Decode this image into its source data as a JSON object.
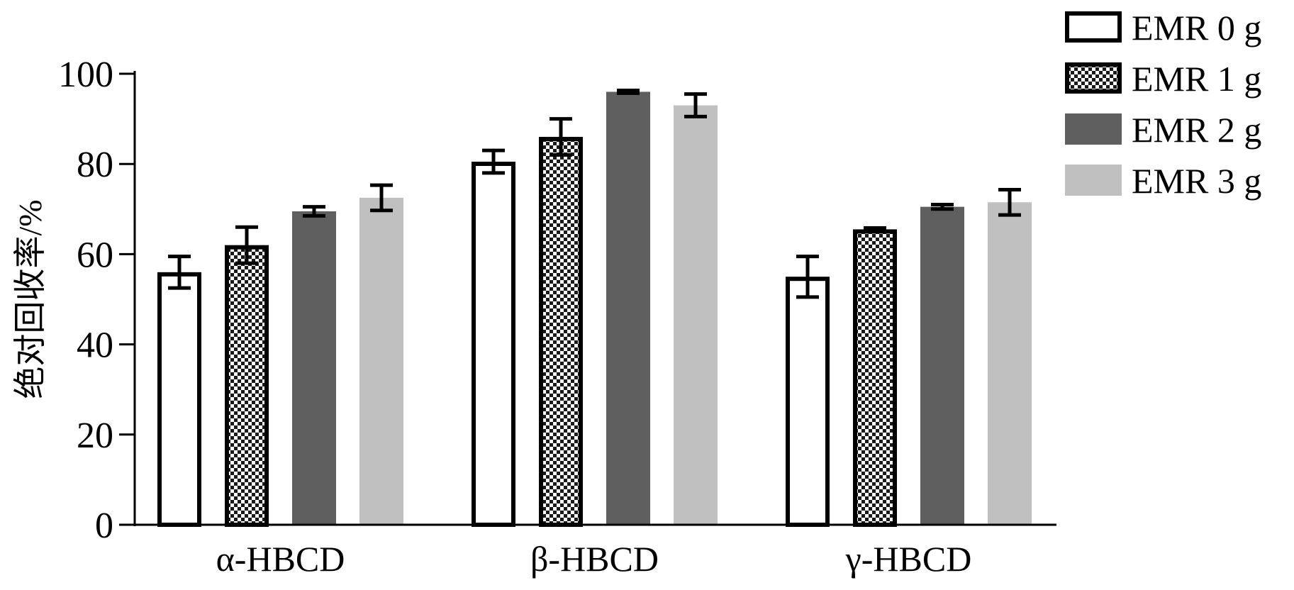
{
  "chart_data": {
    "type": "bar",
    "ylabel": "绝对回收率/%",
    "ylim": [
      0,
      100
    ],
    "yticks": [
      0,
      20,
      40,
      60,
      80,
      100
    ],
    "categories": [
      "α-HBCD",
      "β-HBCD",
      "γ-HBCD"
    ],
    "legend_position": "top-right",
    "grid": false,
    "series": [
      {
        "name": "EMR 0 g",
        "pattern": "hollow",
        "color": "#ffffff",
        "values": [
          56.0,
          80.5,
          55.0
        ],
        "errors": [
          3.5,
          2.5,
          4.5
        ]
      },
      {
        "name": "EMR 1 g",
        "pattern": "checker",
        "color": "#000000",
        "values": [
          62.0,
          86.0,
          65.5
        ],
        "errors": [
          4.0,
          4.0,
          0.3
        ]
      },
      {
        "name": "EMR 2 g",
        "pattern": "solid",
        "color": "#5f5f5f",
        "values": [
          69.5,
          96.0,
          70.5
        ],
        "errors": [
          1.0,
          0.3,
          0.5
        ]
      },
      {
        "name": "EMR 3 g",
        "pattern": "solid",
        "color": "#c0c0c0",
        "values": [
          72.5,
          93.0,
          71.5
        ],
        "errors": [
          2.8,
          2.5,
          2.8
        ]
      }
    ]
  }
}
